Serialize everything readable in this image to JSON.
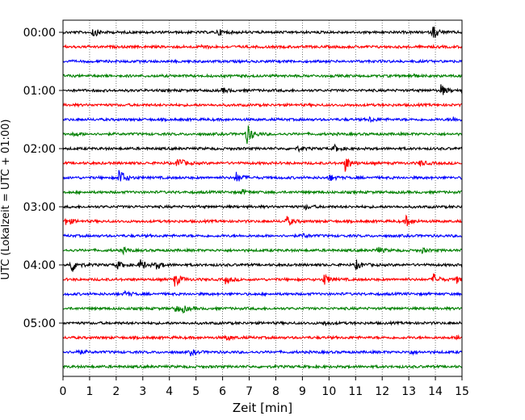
{
  "chart_data": {
    "type": "line",
    "subtype": "helicorder",
    "title": "",
    "xlabel": "Zeit  [min]",
    "ylabel": "UTC (Lokalzeit = UTC + 01:00)",
    "xlim": [
      0,
      15
    ],
    "x_ticks": [
      "0",
      "1",
      "2",
      "3",
      "4",
      "5",
      "6",
      "7",
      "8",
      "9",
      "10",
      "11",
      "12",
      "13",
      "14",
      "15"
    ],
    "y_ticks": [
      "00:00",
      "01:00",
      "02:00",
      "03:00",
      "04:00",
      "05:00"
    ],
    "trace_interval_min": 15,
    "trace_count": 24,
    "grid": "vertical dotted",
    "series_colors": [
      "#000000",
      "#ff0000",
      "#0000ff",
      "#008000"
    ],
    "events": [
      {
        "trace": 0,
        "t": 1.1,
        "a": 0.7
      },
      {
        "trace": 0,
        "t": 5.8,
        "a": 0.5
      },
      {
        "trace": 0,
        "t": 13.9,
        "a": 1.0
      },
      {
        "trace": 1,
        "t": 5.2,
        "a": 0.3
      },
      {
        "trace": 3,
        "t": 13.0,
        "a": 0.35
      },
      {
        "trace": 4,
        "t": 14.2,
        "a": 0.8
      },
      {
        "trace": 4,
        "t": 6.0,
        "a": 0.35
      },
      {
        "trace": 6,
        "t": 11.5,
        "a": 0.35
      },
      {
        "trace": 6,
        "t": 14.6,
        "a": 0.4
      },
      {
        "trace": 7,
        "t": 6.9,
        "a": 1.5
      },
      {
        "trace": 7,
        "t": 0.4,
        "a": 0.3
      },
      {
        "trace": 8,
        "t": 10.2,
        "a": 0.45
      },
      {
        "trace": 8,
        "t": 8.8,
        "a": 0.3
      },
      {
        "trace": 9,
        "t": 4.3,
        "a": 0.95
      },
      {
        "trace": 9,
        "t": 10.6,
        "a": 1.1
      },
      {
        "trace": 9,
        "t": 13.4,
        "a": 0.45
      },
      {
        "trace": 10,
        "t": 2.1,
        "a": 1.4
      },
      {
        "trace": 10,
        "t": 6.5,
        "a": 0.75
      },
      {
        "trace": 10,
        "t": 10.0,
        "a": 0.5
      },
      {
        "trace": 11,
        "t": 6.7,
        "a": 0.35
      },
      {
        "trace": 12,
        "t": 9.1,
        "a": 0.3
      },
      {
        "trace": 13,
        "t": 0.1,
        "a": 0.6
      },
      {
        "trace": 13,
        "t": 8.4,
        "a": 0.7
      },
      {
        "trace": 13,
        "t": 12.9,
        "a": 0.75
      },
      {
        "trace": 14,
        "t": 9.0,
        "a": 0.3
      },
      {
        "trace": 15,
        "t": 2.2,
        "a": 0.45
      },
      {
        "trace": 15,
        "t": 11.8,
        "a": 0.5
      },
      {
        "trace": 15,
        "t": 13.5,
        "a": 0.3
      },
      {
        "trace": 16,
        "t": 0.3,
        "a": 1.2
      },
      {
        "trace": 16,
        "t": 2.0,
        "a": 0.6
      },
      {
        "trace": 16,
        "t": 2.9,
        "a": 0.8
      },
      {
        "trace": 16,
        "t": 3.5,
        "a": 0.5
      },
      {
        "trace": 16,
        "t": 11.0,
        "a": 0.7
      },
      {
        "trace": 17,
        "t": 4.2,
        "a": 1.0
      },
      {
        "trace": 17,
        "t": 6.1,
        "a": 0.55
      },
      {
        "trace": 17,
        "t": 9.8,
        "a": 0.85
      },
      {
        "trace": 17,
        "t": 13.9,
        "a": 0.9
      },
      {
        "trace": 17,
        "t": 14.8,
        "a": 0.5
      },
      {
        "trace": 18,
        "t": 2.3,
        "a": 0.4
      },
      {
        "trace": 19,
        "t": 4.2,
        "a": 0.5
      },
      {
        "trace": 19,
        "t": 4.5,
        "a": 0.4
      },
      {
        "trace": 20,
        "t": 9.8,
        "a": 0.35
      },
      {
        "trace": 21,
        "t": 6.1,
        "a": 0.4
      },
      {
        "trace": 21,
        "t": 14.8,
        "a": 0.35
      },
      {
        "trace": 22,
        "t": 0.5,
        "a": 0.4
      },
      {
        "trace": 22,
        "t": 4.8,
        "a": 0.4
      },
      {
        "trace": 22,
        "t": 13.0,
        "a": 0.3
      }
    ]
  }
}
